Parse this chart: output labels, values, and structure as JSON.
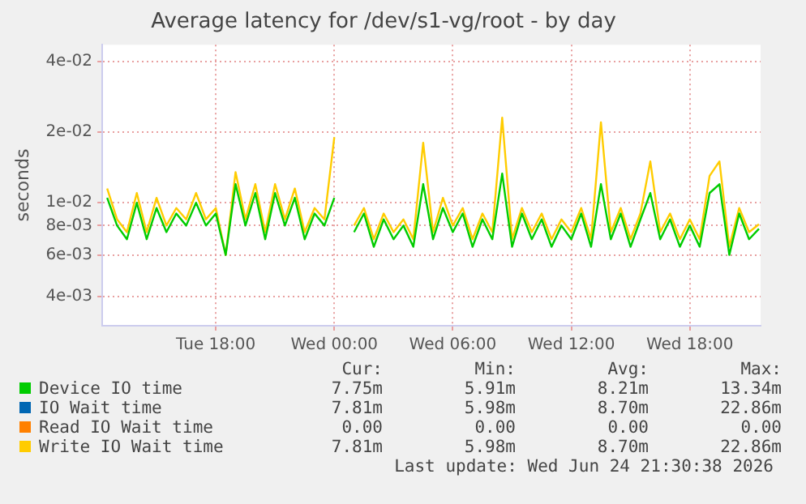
{
  "chart_data": {
    "type": "line",
    "title": "Average latency for /dev/s1-vg/root - by day",
    "ylabel": "seconds",
    "log": "y",
    "grid": true,
    "legend": "bottom",
    "marker": "none",
    "line_style": "solid",
    "xlim": [
      "2026-06-23T12:15",
      "2026-06-24T21:35"
    ],
    "xticks": [
      {
        "value": "2026-06-23T18:00",
        "label": "Tue 18:00"
      },
      {
        "value": "2026-06-24T00:00",
        "label": "Wed 00:00"
      },
      {
        "value": "2026-06-24T06:00",
        "label": "Wed 06:00"
      },
      {
        "value": "2026-06-24T12:00",
        "label": "Wed 12:00"
      },
      {
        "value": "2026-06-24T18:00",
        "label": "Wed 18:00"
      }
    ],
    "ylim": [
      0.003,
      0.047
    ],
    "yticks": [
      {
        "value": 0.004,
        "label": "4e-03"
      },
      {
        "value": 0.006,
        "label": "6e-03"
      },
      {
        "value": 0.008,
        "label": "8e-03"
      },
      {
        "value": 0.01,
        "label": "1e-02"
      },
      {
        "value": 0.02,
        "label": "2e-02"
      },
      {
        "value": 0.04,
        "label": "4e-02"
      }
    ],
    "x": [
      "2026-06-23T12:30",
      "2026-06-23T13:00",
      "2026-06-23T13:30",
      "2026-06-23T14:00",
      "2026-06-23T14:30",
      "2026-06-23T15:00",
      "2026-06-23T15:30",
      "2026-06-23T16:00",
      "2026-06-23T16:30",
      "2026-06-23T17:00",
      "2026-06-23T17:30",
      "2026-06-23T18:00",
      "2026-06-23T18:30",
      "2026-06-23T19:00",
      "2026-06-23T19:30",
      "2026-06-23T20:00",
      "2026-06-23T20:30",
      "2026-06-23T21:00",
      "2026-06-23T21:30",
      "2026-06-23T22:00",
      "2026-06-23T22:30",
      "2026-06-23T23:00",
      "2026-06-23T23:30",
      "2026-06-24T00:00",
      "2026-06-24T00:30",
      "2026-06-24T01:00",
      "2026-06-24T01:30",
      "2026-06-24T02:00",
      "2026-06-24T02:30",
      "2026-06-24T03:00",
      "2026-06-24T03:30",
      "2026-06-24T04:00",
      "2026-06-24T04:30",
      "2026-06-24T05:00",
      "2026-06-24T05:30",
      "2026-06-24T06:00",
      "2026-06-24T06:30",
      "2026-06-24T07:00",
      "2026-06-24T07:30",
      "2026-06-24T08:00",
      "2026-06-24T08:30",
      "2026-06-24T09:00",
      "2026-06-24T09:30",
      "2026-06-24T10:00",
      "2026-06-24T10:30",
      "2026-06-24T11:00",
      "2026-06-24T11:30",
      "2026-06-24T12:00",
      "2026-06-24T12:30",
      "2026-06-24T13:00",
      "2026-06-24T13:30",
      "2026-06-24T14:00",
      "2026-06-24T14:30",
      "2026-06-24T15:00",
      "2026-06-24T15:30",
      "2026-06-24T16:00",
      "2026-06-24T16:30",
      "2026-06-24T17:00",
      "2026-06-24T17:30",
      "2026-06-24T18:00",
      "2026-06-24T18:30",
      "2026-06-24T19:00",
      "2026-06-24T19:30",
      "2026-06-24T20:00",
      "2026-06-24T20:30",
      "2026-06-24T21:00",
      "2026-06-24T21:30"
    ],
    "series": [
      {
        "name": "Device IO time",
        "color": "#00cc00",
        "values": [
          0.0105,
          0.008,
          0.007,
          0.01,
          0.007,
          0.0095,
          0.0075,
          0.009,
          0.008,
          0.01,
          0.008,
          0.009,
          0.006,
          0.012,
          0.008,
          0.011,
          0.007,
          0.011,
          0.008,
          0.0105,
          0.007,
          0.009,
          0.008,
          0.0105,
          null,
          0.0075,
          0.009,
          0.0065,
          0.0085,
          0.007,
          0.008,
          0.0065,
          0.012,
          0.007,
          0.0095,
          0.0075,
          0.009,
          0.0065,
          0.0085,
          0.007,
          0.0133,
          0.0065,
          0.009,
          0.007,
          0.0085,
          0.0065,
          0.008,
          0.007,
          0.009,
          0.0065,
          0.012,
          0.007,
          0.009,
          0.0065,
          0.0085,
          0.011,
          0.007,
          0.0085,
          0.0065,
          0.008,
          0.0065,
          0.011,
          0.012,
          0.006,
          0.009,
          0.007,
          0.00775
        ]
      },
      {
        "name": "IO Wait time",
        "color": "#0066b3",
        "values": [
          null,
          null,
          null,
          null,
          null,
          null,
          null,
          null,
          null,
          null,
          null,
          null,
          null,
          null,
          null,
          null,
          null,
          null,
          null,
          null,
          null,
          null,
          null,
          null,
          null,
          null,
          null,
          null,
          null,
          null,
          null,
          null,
          null,
          null,
          null,
          null,
          null,
          null,
          null,
          null,
          null,
          null,
          null,
          null,
          null,
          null,
          null,
          null,
          null,
          null,
          null,
          null,
          null,
          null,
          null,
          null,
          null,
          null,
          null,
          null,
          null,
          null,
          null,
          null,
          null,
          null,
          null
        ]
      },
      {
        "name": "Read IO Wait time",
        "color": "#ff8000",
        "values": [
          null,
          null,
          null,
          null,
          null,
          null,
          null,
          null,
          null,
          null,
          null,
          null,
          null,
          null,
          null,
          null,
          null,
          null,
          null,
          null,
          null,
          null,
          null,
          null,
          null,
          null,
          null,
          null,
          null,
          null,
          null,
          null,
          null,
          null,
          null,
          null,
          null,
          null,
          null,
          null,
          null,
          null,
          null,
          null,
          null,
          null,
          null,
          null,
          null,
          null,
          null,
          null,
          null,
          null,
          null,
          null,
          null,
          null,
          null,
          null,
          null,
          null,
          null,
          null,
          null,
          null,
          null
        ]
      },
      {
        "name": "Write IO Wait time",
        "color": "#ffcc00",
        "values": [
          0.0115,
          0.0085,
          0.0075,
          0.011,
          0.0075,
          0.0105,
          0.008,
          0.0095,
          0.0085,
          0.011,
          0.0085,
          0.0095,
          0.006,
          0.0135,
          0.0085,
          0.012,
          0.0075,
          0.012,
          0.0085,
          0.0115,
          0.0075,
          0.0095,
          0.0085,
          0.019,
          null,
          0.008,
          0.0095,
          0.007,
          0.009,
          0.0075,
          0.0085,
          0.007,
          0.018,
          0.0075,
          0.0105,
          0.008,
          0.0095,
          0.007,
          0.009,
          0.0075,
          0.023,
          0.007,
          0.0095,
          0.0075,
          0.009,
          0.007,
          0.0085,
          0.0075,
          0.0095,
          0.007,
          0.022,
          0.0075,
          0.0095,
          0.007,
          0.009,
          0.015,
          0.0075,
          0.009,
          0.007,
          0.0085,
          0.007,
          0.013,
          0.015,
          0.0065,
          0.0095,
          0.0075,
          0.0081
        ]
      }
    ],
    "annotations": [
      "Cur:",
      "Min:",
      "Avg:",
      "Max:",
      "7.75m",
      "5.91m",
      "8.21m",
      "13.34m",
      "7.81m",
      "5.98m",
      "8.70m",
      "22.86m",
      "0.00",
      "0.00",
      "0.00",
      "0.00",
      "7.81m",
      "5.98m",
      "8.70m",
      "22.86m",
      "Last update: Wed Jun 24 21:30:38 2026"
    ]
  }
}
